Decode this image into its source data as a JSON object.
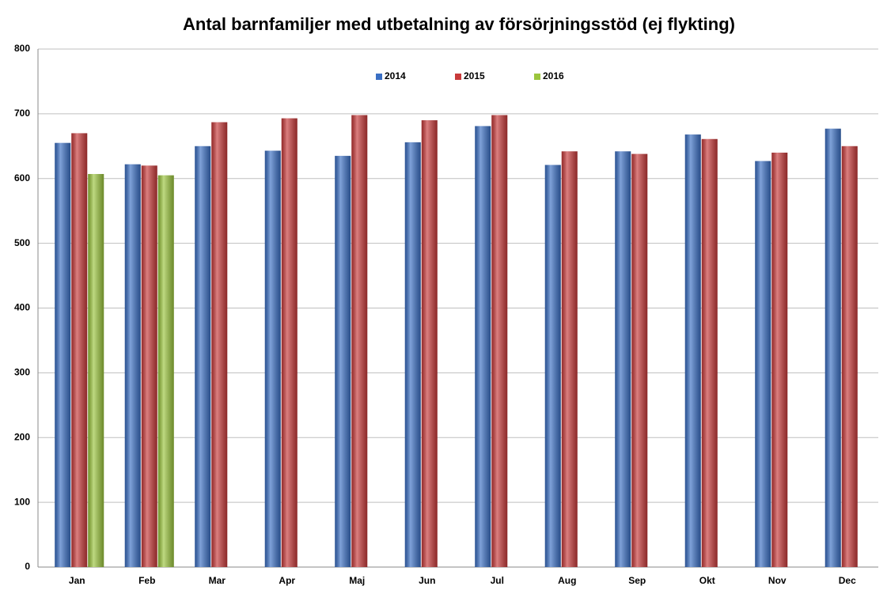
{
  "chart_data": {
    "type": "bar",
    "title": "Antal barnfamiljer med utbetalning av försörjningsstöd (ej flykting)",
    "categories": [
      "Jan",
      "Feb",
      "Mar",
      "Apr",
      "Maj",
      "Jun",
      "Jul",
      "Aug",
      "Sep",
      "Okt",
      "Nov",
      "Dec"
    ],
    "series": [
      {
        "name": "2014",
        "color": "#3a6fc4",
        "values": [
          655,
          622,
          650,
          643,
          635,
          656,
          681,
          621,
          642,
          668,
          627,
          677
        ]
      },
      {
        "name": "2015",
        "color": "#c83a3a",
        "values": [
          670,
          620,
          687,
          693,
          698,
          690,
          698,
          642,
          638,
          661,
          640,
          650
        ]
      },
      {
        "name": "2016",
        "color": "#9bc53d",
        "values": [
          607,
          605,
          null,
          null,
          null,
          null,
          null,
          null,
          null,
          null,
          null,
          null
        ]
      }
    ],
    "ylim": [
      0,
      800
    ],
    "yticks": [
      0,
      100,
      200,
      300,
      400,
      500,
      600,
      700,
      800
    ],
    "grid": true,
    "legend": "top"
  }
}
